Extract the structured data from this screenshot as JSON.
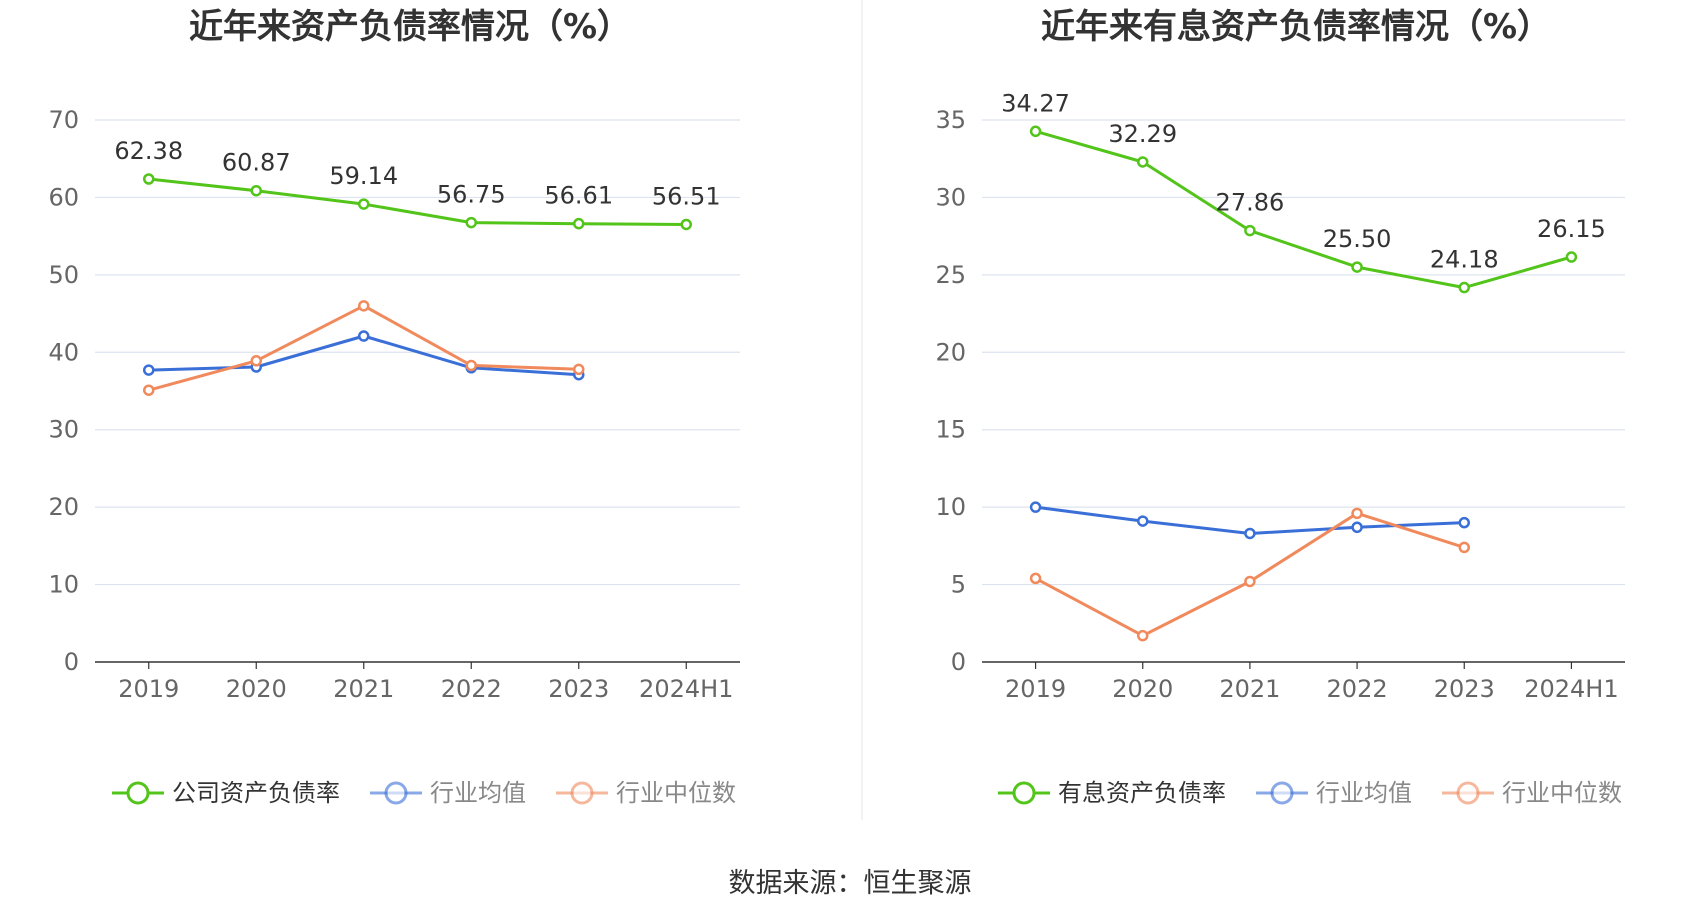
{
  "source_text": "数据来源：恒生聚源",
  "colors": {
    "company": "#52c41a",
    "avg": "#3a6fd8",
    "median": "#f08a5d",
    "grid": "#dde3ee",
    "axis": "#333333"
  },
  "chart_data": [
    {
      "type": "line",
      "title": "近年来资产负债率情况（%）",
      "categories": [
        "2019",
        "2020",
        "2021",
        "2022",
        "2023",
        "2024H1"
      ],
      "ylim": [
        0,
        70
      ],
      "yticks": [
        0,
        10,
        20,
        30,
        40,
        50,
        60,
        70
      ],
      "grid": true,
      "legend_position": "bottom",
      "series": [
        {
          "name": "公司资产负债率",
          "color": "#52c41a",
          "values": [
            62.38,
            60.87,
            59.14,
            56.75,
            56.61,
            56.51
          ],
          "labels": [
            "62.38",
            "60.87",
            "59.14",
            "56.75",
            "56.61",
            "56.51"
          ]
        },
        {
          "name": "行业均值",
          "color": "#3a6fd8",
          "values": [
            37.7,
            38.1,
            42.1,
            38.0,
            37.1,
            null
          ]
        },
        {
          "name": "行业中位数",
          "color": "#f08a5d",
          "values": [
            35.1,
            38.9,
            46.0,
            38.3,
            37.8,
            null
          ]
        }
      ]
    },
    {
      "type": "line",
      "title": "近年来有息资产负债率情况（%）",
      "categories": [
        "2019",
        "2020",
        "2021",
        "2022",
        "2023",
        "2024H1"
      ],
      "ylim": [
        0,
        35
      ],
      "yticks": [
        0,
        5,
        10,
        15,
        20,
        25,
        30,
        35
      ],
      "grid": true,
      "legend_position": "bottom",
      "series": [
        {
          "name": "有息资产负债率",
          "color": "#52c41a",
          "values": [
            34.27,
            32.29,
            27.86,
            25.5,
            24.18,
            26.15
          ],
          "labels": [
            "34.27",
            "32.29",
            "27.86",
            "25.50",
            "24.18",
            "26.15"
          ]
        },
        {
          "name": "行业均值",
          "color": "#3a6fd8",
          "values": [
            10.0,
            9.1,
            8.3,
            8.7,
            9.0,
            null
          ]
        },
        {
          "name": "行业中位数",
          "color": "#f08a5d",
          "values": [
            5.4,
            1.7,
            5.2,
            9.6,
            7.4,
            null
          ]
        }
      ]
    }
  ]
}
